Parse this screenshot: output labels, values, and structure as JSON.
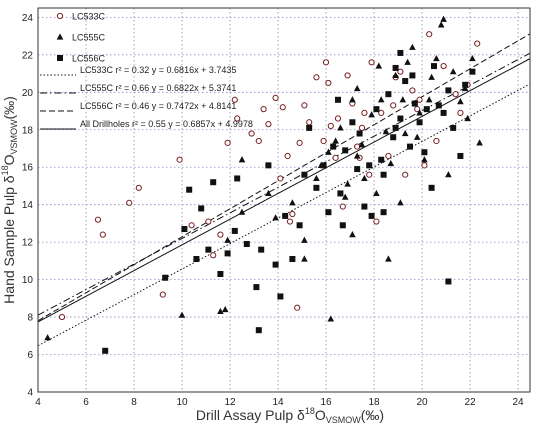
{
  "chart_data": {
    "type": "scatter",
    "xlabel": {
      "main": "Drill Assay Pulp δ",
      "sup": "18",
      "element": "O",
      "sub": "VSMOW",
      "unit": "(‰)"
    },
    "ylabel": {
      "main": "Hand Sample Pulp δ",
      "sup": "18",
      "element": "O",
      "sub": "VSMOW",
      "unit": "(‰)"
    },
    "xlim": [
      4,
      24.5
    ],
    "ylim": [
      4,
      24.5
    ],
    "xticks": [
      4,
      6,
      8,
      10,
      12,
      14,
      16,
      18,
      20,
      22,
      24
    ],
    "yticks": [
      4,
      6,
      8,
      10,
      12,
      14,
      16,
      18,
      20,
      22,
      24
    ],
    "grid": true,
    "legend_position": "top-left",
    "series": [
      {
        "name": "LC533C",
        "marker": "open-circle",
        "points": [
          [
            5,
            8
          ],
          [
            6.5,
            13.2
          ],
          [
            6.7,
            12.4
          ],
          [
            7.8,
            14.1
          ],
          [
            8.2,
            14.9
          ],
          [
            9.2,
            9.2
          ],
          [
            9.9,
            16.4
          ],
          [
            10.4,
            12.9
          ],
          [
            11.1,
            13.1
          ],
          [
            11.3,
            11.3
          ],
          [
            11.6,
            12.4
          ],
          [
            11.9,
            17.3
          ],
          [
            12.3,
            18.6
          ],
          [
            12.2,
            19.6
          ],
          [
            12.9,
            17.8
          ],
          [
            13.2,
            17.4
          ],
          [
            13.4,
            19.1
          ],
          [
            13.6,
            18.3
          ],
          [
            13.9,
            19.7
          ],
          [
            14.1,
            15.4
          ],
          [
            14.2,
            19.2
          ],
          [
            14.4,
            16.6
          ],
          [
            14.5,
            13.1
          ],
          [
            14.6,
            13.5
          ],
          [
            14.8,
            8.5
          ],
          [
            14.9,
            17.3
          ],
          [
            15.1,
            19.3
          ],
          [
            15.3,
            18.4
          ],
          [
            15.6,
            20.8
          ],
          [
            15.9,
            17.4
          ],
          [
            16,
            21.6
          ],
          [
            16.1,
            20.5
          ],
          [
            16.2,
            18.2
          ],
          [
            16.4,
            16.5
          ],
          [
            16.5,
            18.6
          ],
          [
            16.7,
            13.9
          ],
          [
            16.9,
            20.9
          ],
          [
            17.1,
            19.4
          ],
          [
            17.3,
            17.1
          ],
          [
            17.4,
            16.5
          ],
          [
            17.6,
            18.9
          ],
          [
            17.8,
            15.6
          ],
          [
            17.9,
            21.6
          ],
          [
            18.1,
            13.1
          ],
          [
            18.3,
            18.9
          ],
          [
            18.6,
            16.6
          ],
          [
            18.8,
            19.3
          ],
          [
            19.1,
            21.1
          ],
          [
            19.3,
            15.6
          ],
          [
            19.6,
            20.1
          ],
          [
            19.9,
            19.6
          ],
          [
            20.1,
            16.1
          ],
          [
            20.3,
            23.1
          ],
          [
            20.6,
            17.4
          ],
          [
            20.9,
            21.4
          ],
          [
            21.4,
            19.9
          ],
          [
            21.6,
            18.9
          ],
          [
            21.9,
            20.4
          ],
          [
            22.3,
            22.6
          ],
          [
            17.5,
            18.1
          ],
          [
            18.9,
            20.8
          ],
          [
            19.8,
            19.1
          ]
        ]
      },
      {
        "name": "LC555C",
        "marker": "filled-triangle",
        "points": [
          [
            4.4,
            6.9
          ],
          [
            10,
            8.1
          ],
          [
            11.6,
            8.3
          ],
          [
            11.8,
            8.4
          ],
          [
            11.9,
            12.1
          ],
          [
            12.5,
            13.6
          ],
          [
            13.6,
            14.6
          ],
          [
            13.9,
            13.3
          ],
          [
            14.6,
            14.1
          ],
          [
            15.1,
            12.1
          ],
          [
            15.6,
            15.4
          ],
          [
            15.8,
            16.1
          ],
          [
            16.1,
            16.8
          ],
          [
            16.2,
            7.9
          ],
          [
            16.4,
            17.4
          ],
          [
            16.6,
            18.1
          ],
          [
            16.8,
            14.4
          ],
          [
            17.1,
            19.6
          ],
          [
            17.3,
            16.6
          ],
          [
            17.5,
            17.2
          ],
          [
            17.6,
            15.4
          ],
          [
            17.9,
            18.8
          ],
          [
            18.1,
            14.6
          ],
          [
            18.3,
            19.6
          ],
          [
            18.5,
            17.9
          ],
          [
            18.7,
            16.2
          ],
          [
            18.9,
            20.9
          ],
          [
            19.1,
            14.1
          ],
          [
            19.3,
            17.8
          ],
          [
            19.4,
            21.6
          ],
          [
            19.6,
            22.4
          ],
          [
            19.9,
            18.9
          ],
          [
            20.1,
            16.4
          ],
          [
            20.3,
            19.6
          ],
          [
            20.6,
            21.8
          ],
          [
            20.8,
            23.6
          ],
          [
            20.9,
            23.9
          ],
          [
            21.1,
            15.6
          ],
          [
            21.3,
            21.1
          ],
          [
            21.6,
            19.5
          ],
          [
            21.8,
            20.2
          ],
          [
            22.1,
            21.8
          ],
          [
            22.4,
            17.3
          ],
          [
            12.5,
            16.4
          ],
          [
            15.1,
            11.1
          ],
          [
            17.1,
            12.4
          ],
          [
            18.6,
            11.1
          ],
          [
            19.8,
            17.6
          ],
          [
            20.4,
            20.8
          ],
          [
            21.9,
            18.6
          ],
          [
            17.3,
            20.2
          ],
          [
            18.2,
            21.4
          ],
          [
            19.2,
            19.6
          ],
          [
            16.9,
            15.1
          ]
        ]
      },
      {
        "name": "LC556C",
        "marker": "filled-square",
        "points": [
          [
            6.8,
            6.2
          ],
          [
            9.3,
            10.1
          ],
          [
            10.1,
            12.7
          ],
          [
            10.3,
            14.8
          ],
          [
            10.6,
            11.1
          ],
          [
            10.8,
            13.8
          ],
          [
            11.1,
            11.6
          ],
          [
            11.3,
            15.2
          ],
          [
            11.6,
            10.3
          ],
          [
            11.9,
            11.4
          ],
          [
            12.2,
            12.6
          ],
          [
            12.3,
            15.4
          ],
          [
            12.7,
            11.9
          ],
          [
            13.1,
            9.6
          ],
          [
            13.3,
            11.6
          ],
          [
            13.2,
            7.3
          ],
          [
            13.6,
            16.1
          ],
          [
            13.9,
            10.8
          ],
          [
            14.1,
            9.1
          ],
          [
            14.3,
            13.4
          ],
          [
            14.6,
            11.1
          ],
          [
            14.9,
            12.9
          ],
          [
            15.1,
            15.6
          ],
          [
            15.3,
            18.1
          ],
          [
            15.6,
            14.9
          ],
          [
            15.9,
            16.1
          ],
          [
            16.1,
            13.6
          ],
          [
            16.3,
            17.1
          ],
          [
            16.5,
            19.6
          ],
          [
            16.6,
            14.6
          ],
          [
            16.8,
            16.9
          ],
          [
            17.1,
            18.4
          ],
          [
            17.3,
            15.9
          ],
          [
            17.6,
            13.9
          ],
          [
            17.8,
            16.1
          ],
          [
            17.9,
            13.4
          ],
          [
            18.1,
            19.1
          ],
          [
            18.3,
            16.4
          ],
          [
            18.4,
            15.6
          ],
          [
            18.6,
            19.9
          ],
          [
            18.8,
            17.6
          ],
          [
            18.9,
            21.3
          ],
          [
            19.1,
            18.6
          ],
          [
            19.3,
            20.6
          ],
          [
            19.5,
            17.1
          ],
          [
            19.7,
            19.4
          ],
          [
            19.9,
            18.4
          ],
          [
            20.1,
            16.8
          ],
          [
            20.2,
            19.1
          ],
          [
            20.4,
            14.9
          ],
          [
            20.5,
            21.4
          ],
          [
            20.7,
            19.3
          ],
          [
            20.9,
            18.9
          ],
          [
            21.1,
            20.1
          ],
          [
            21.1,
            9.9
          ],
          [
            21.3,
            18.1
          ],
          [
            21.6,
            16.6
          ],
          [
            21.8,
            20.4
          ],
          [
            22.1,
            21.1
          ],
          [
            18.4,
            13.6
          ],
          [
            19.1,
            22.1
          ],
          [
            19.6,
            20.9
          ],
          [
            17.4,
            17.8
          ],
          [
            16.7,
            12.9
          ],
          [
            18.9,
            18.1
          ]
        ]
      }
    ],
    "fit_lines": [
      {
        "name": "LC533C",
        "label": "LC533C r² = 0.32  y = 0.6816x + 3.7435",
        "style": "dotted",
        "slope": 0.6816,
        "intercept": 3.7435
      },
      {
        "name": "LC555C",
        "label": "LC555C r² = 0.66  y = 0.6822x + 5.3741",
        "style": "dash-dot",
        "slope": 0.6822,
        "intercept": 5.3741
      },
      {
        "name": "LC556C",
        "label": "LC556C r² = 0.46  y = 0.7472x + 4.8141",
        "style": "dashed",
        "slope": 0.7472,
        "intercept": 4.8141
      },
      {
        "name": "All Drillholes",
        "label": "All Drillholes r² = 0.55  y = 0.6857x + 4.9978",
        "style": "solid",
        "slope": 0.6857,
        "intercept": 4.9978
      }
    ]
  }
}
